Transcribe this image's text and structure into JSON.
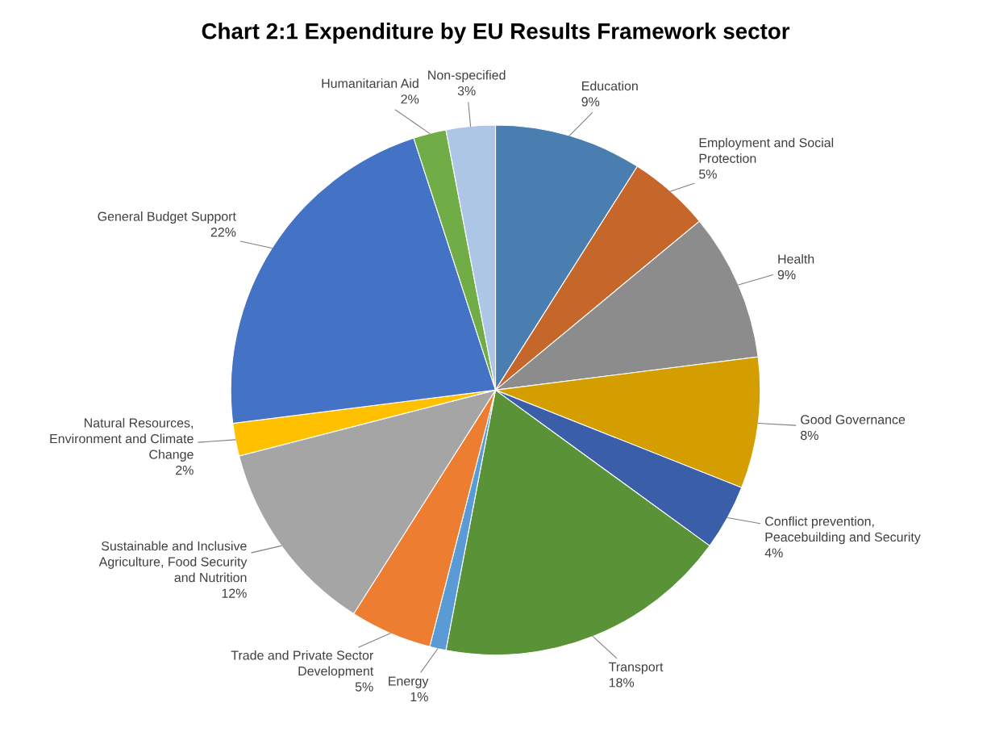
{
  "chart_data": {
    "type": "pie",
    "title": "Chart 2:1 Expenditure by EU Results Framework sector",
    "categories": [
      "Education",
      "Employment and Social\nProtection",
      "Health",
      "Good Governance",
      "Conflict prevention,\nPeacebuilding and Security",
      "Transport",
      "Energy",
      "Trade and Private Sector\nDevelopment",
      "Sustainable and Inclusive\nAgriculture, Food Security\nand Nutrition",
      "Natural Resources,\nEnvironment and Climate\nChange",
      "General Budget Support",
      "Humanitarian Aid",
      "Non-specified"
    ],
    "values": [
      9,
      5,
      9,
      8,
      4,
      18,
      1,
      5,
      12,
      2,
      22,
      2,
      3
    ],
    "value_labels": [
      "9%",
      "5%",
      "9%",
      "8%",
      "4%",
      "18%",
      "1%",
      "5%",
      "12%",
      "2%",
      "22%",
      "2%",
      "3%"
    ],
    "colors": [
      "#4a7eb0",
      "#c5662a",
      "#8c8c8c",
      "#d49e00",
      "#3a5ea8",
      "#5a9238",
      "#5b9bd5",
      "#ed7d31",
      "#a5a5a5",
      "#ffc000",
      "#4472c4",
      "#70ad47",
      "#adc6e6"
    ]
  }
}
